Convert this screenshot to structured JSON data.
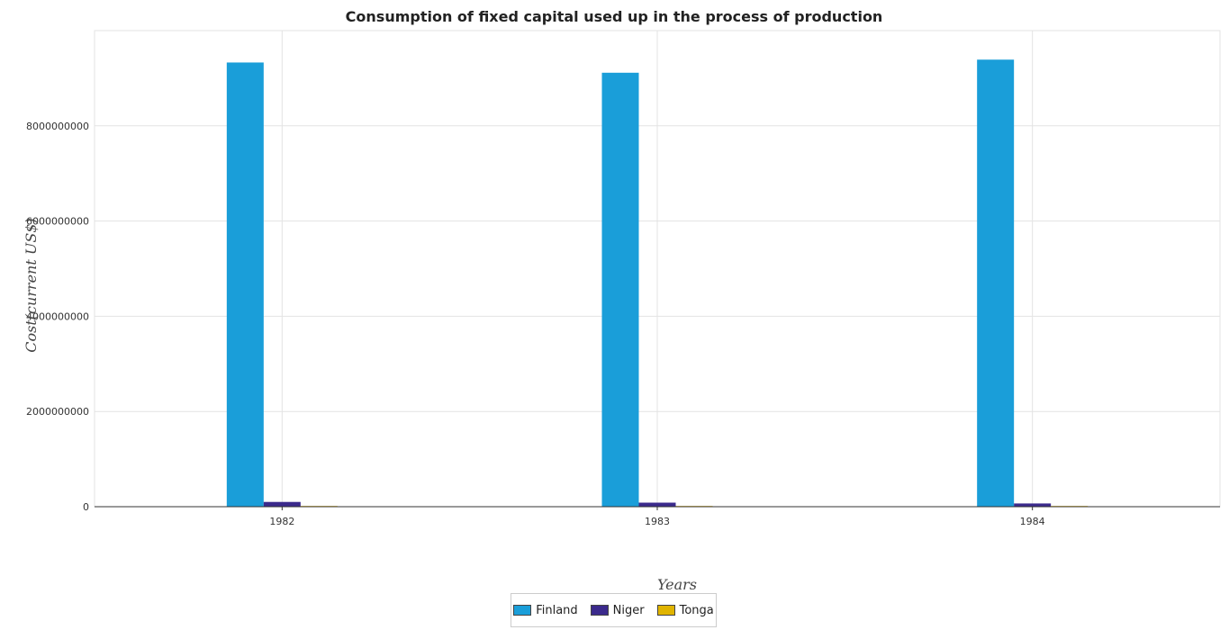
{
  "chart_data": {
    "type": "bar",
    "title": "Consumption of fixed capital used up in the process of production",
    "xlabel": "Years",
    "ylabel": "Cost(current US$)",
    "categories": [
      "1982",
      "1983",
      "1984"
    ],
    "ylim": [
      0,
      10000000000
    ],
    "yticks": [
      0,
      2000000000,
      4000000000,
      6000000000,
      8000000000
    ],
    "ytick_labels": [
      "0",
      "2000000000",
      "4000000000",
      "6000000000",
      "8000000000"
    ],
    "grid": true,
    "legend_position": "bottom-center",
    "series": [
      {
        "name": "Finland",
        "color": "#1a9ed9",
        "values": [
          9330000000,
          9115000000,
          9390000000
        ]
      },
      {
        "name": "Niger",
        "color": "#3b2a8c",
        "values": [
          100000000,
          85000000,
          68000000
        ]
      },
      {
        "name": "Tonga",
        "color": "#e0b400",
        "values": [
          2000000,
          2000000,
          2000000
        ]
      }
    ]
  }
}
